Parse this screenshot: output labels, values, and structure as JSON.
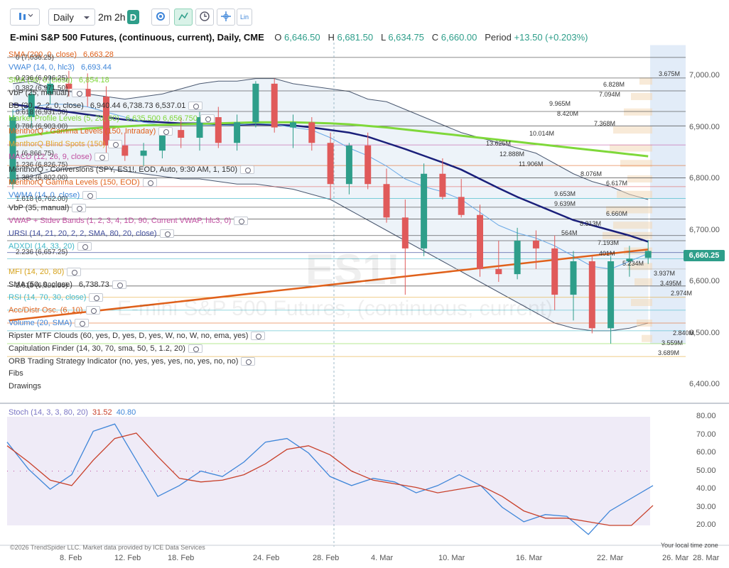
{
  "toolbar": {
    "interval": "Daily",
    "tf_2m": "2m",
    "tf_2h": "2h",
    "tf_d": "D",
    "lin": "Lin",
    "icons": [
      "bars-icon",
      "settings-icon",
      "chart-trend-icon",
      "clock-icon",
      "crosshair-icon",
      "lin-scale-icon"
    ]
  },
  "header": {
    "title": "E-mini S&P 500 Futures, (continuous, current), Daily, CME",
    "o_label": "O",
    "o": "6,646.50",
    "h_label": "H",
    "h": "6,681.50",
    "l_label": "L",
    "l": "6,634.75",
    "c_label": "C",
    "c": "6,660.00",
    "period_label": "Period",
    "period": "+13.50 (+0.203%)"
  },
  "price_tag": "6,660.25",
  "watermark": {
    "symbol": "ES1!",
    "name": "E-mini S&P 500 Futures, (continuous, current)"
  },
  "indicators": [
    {
      "text": "SMA (200, 0, close)",
      "value": "6,663.28",
      "color": "#e0611b"
    },
    {
      "text": "VWAP (14, 0, hlc3)",
      "value": "6,693.44",
      "color": "#3f86d9"
    },
    {
      "text": "SMA (50, 0, close)",
      "value": "6,854.18",
      "color": "#7fd83a"
    },
    {
      "text": "VbP (25, manual)",
      "value": "",
      "color": "#333"
    },
    {
      "text": "BB (20, 2, 2, 0, close)",
      "value": "6,940.44  6,738.73  6,537.01",
      "color": "#333"
    },
    {
      "text": "Market Profile Levels (5, 20, 60)",
      "value": "6,635.500  6,656.750",
      "color": "#7fd83a"
    },
    {
      "text": "MenthorQ - Gamma Levels (150, Intraday)",
      "value": "",
      "color": "#e0611b"
    },
    {
      "text": "MenthorQ Blind Spots (150)",
      "value": "",
      "color": "#e3a52c"
    },
    {
      "text": "MACD (12, 26, 9, close)",
      "value": "",
      "color": "#c04fa0"
    },
    {
      "text": "MenthorQ - Conversions (SPY, ES1!, EOD, Auto, 9:30 AM, 1, 150)",
      "value": "",
      "color": "#333"
    },
    {
      "text": "MenthorQ Gamma Levels (150, EOD)",
      "value": "",
      "color": "#e0611b"
    },
    {
      "text": "VWMA (14, 0, close)",
      "value": "",
      "color": "#3f86d9"
    },
    {
      "text": "VbP (35, manual)",
      "value": "",
      "color": "#333"
    },
    {
      "text": "VWAP + Stdev Bands (1, 2, 3, 4, 1D, 90, Current VWAP, hlc3, 0)",
      "value": "",
      "color": "#c04fa0"
    },
    {
      "text": "URSI (14, 21, 20, 2, 2, SMA, 80, 20, close)",
      "value": "",
      "color": "#3d4a99"
    },
    {
      "text": "ADXDI (14, 33, 20)",
      "value": "",
      "color": "#3fb8c8"
    },
    {
      "text": "MFI (14, 20, 80)",
      "value": "",
      "color": "#d6a21a"
    },
    {
      "text": "SMA (50, 0, close)",
      "value": "6,738.73",
      "color": "#333"
    },
    {
      "text": "RSI (14, 70, 30, close)",
      "value": "",
      "color": "#3fb8c8"
    },
    {
      "text": "Acc/Distr Osc. (6, 10)",
      "value": "",
      "color": "#e0611b"
    },
    {
      "text": "Volume (20, SMA)",
      "value": "",
      "color": "#3f86d9"
    },
    {
      "text": "Ripster MTF Clouds (60, yes, D, yes, D, yes, W, no, W, no, ema, yes)",
      "value": "",
      "color": "#333"
    },
    {
      "text": "Capitulation Finder (14, 30, 70, sma, 50, 5, 1.2, 20)",
      "value": "",
      "color": "#333"
    },
    {
      "text": "ORB Trading Strategy Indicator (no, yes, yes, yes, no, yes, no, no)",
      "value": "",
      "color": "#333"
    },
    {
      "text": "Fibs",
      "value": "",
      "color": "#333"
    },
    {
      "text": "Drawings",
      "value": "",
      "color": "#333"
    }
  ],
  "fib_labels": [
    "0 (7,036.25)",
    "0.236 (6,996.25)",
    "0.382 (6,971.50)",
    "0.618 (6,931.50)",
    "0.786 (6,903.00)",
    "1 (6,866.75)",
    "1.236 (6,826.75)",
    "1.382 (6,802.00)",
    "1.618 (6,762.00)",
    "2.236 (6,657.25)",
    "2.618 (6,592.50)"
  ],
  "price_axis": [
    "7,000.00",
    "6,900.00",
    "6,800.00",
    "6,700.00",
    "6,600.00",
    "6,500.00",
    "6,400.00"
  ],
  "volume_labels": [
    "3.675M",
    "6.828M",
    "7.094M",
    "9.965M",
    "8.420M",
    "7.368M",
    "10.014M",
    "13.625M",
    "12.888M",
    "11.906M",
    "8.076M",
    "6.617M",
    "9.653M",
    "9.639M",
    "6.660M",
    "8.313M",
    "564M",
    "7.193M",
    "401M",
    "5.234M",
    "3.937M",
    "3.495M",
    "2.974M",
    "2.840M",
    "3.559M",
    "3.689M"
  ],
  "stoch": {
    "label": "Stoch (14, 3, 3, 80, 20)",
    "k": "31.52",
    "d": "40.80",
    "axis": [
      "80.00",
      "70.00",
      "60.00",
      "50.00",
      "40.00",
      "30.00",
      "20.00"
    ]
  },
  "x_axis": [
    "8. Feb",
    "12. Feb",
    "18. Feb",
    "24. Feb",
    "28. Feb",
    "4. Mar",
    "10. Mar",
    "16. Mar",
    "22. Mar",
    "26. Mar",
    "28. Mar"
  ],
  "footer": {
    "copyright": "©2026 TrendSpider LLC. Market data provided by ICE Data Services",
    "timezone": "Your local time zone"
  },
  "colors": {
    "up": "#2e9e8a",
    "down": "#e05a5a",
    "sma200": "#e0611b",
    "sma50": "#7fd83a",
    "vwma": "#1a1f7a",
    "stoch_k": "#3f86d9",
    "stoch_d": "#c8402a"
  },
  "chart_data": {
    "type": "candlestick",
    "x": [
      "Feb 5",
      "Feb 6",
      "Feb 9",
      "Feb 10",
      "Feb 11",
      "Feb 12",
      "Feb 13",
      "Feb 16",
      "Feb 17",
      "Feb 18",
      "Feb 19",
      "Feb 20",
      "Feb 23",
      "Feb 24",
      "Feb 25",
      "Feb 26",
      "Feb 27",
      "Mar 2",
      "Mar 3",
      "Mar 4",
      "Mar 5",
      "Mar 6",
      "Mar 9",
      "Mar 10",
      "Mar 11",
      "Mar 12",
      "Mar 13",
      "Mar 16",
      "Mar 17",
      "Mar 18",
      "Mar 19",
      "Mar 20",
      "Mar 23",
      "Mar 24",
      "Mar 25"
    ],
    "candles": [
      [
        6790,
        6935,
        6780,
        6920
      ],
      [
        6920,
        6975,
        6900,
        6965
      ],
      [
        6965,
        7000,
        6945,
        6985
      ],
      [
        6985,
        7010,
        6960,
        6975
      ],
      [
        6975,
        7005,
        6940,
        6960
      ],
      [
        6960,
        6980,
        6850,
        6865
      ],
      [
        6865,
        6890,
        6835,
        6845
      ],
      [
        6845,
        6870,
        6825,
        6855
      ],
      [
        6855,
        6900,
        6840,
        6895
      ],
      [
        6895,
        6920,
        6860,
        6880
      ],
      [
        6880,
        6930,
        6855,
        6920
      ],
      [
        6920,
        6940,
        6860,
        6870
      ],
      [
        6870,
        6925,
        6855,
        6910
      ],
      [
        6910,
        6990,
        6900,
        6985
      ],
      [
        6985,
        6995,
        6890,
        6900
      ],
      [
        6900,
        6925,
        6860,
        6910
      ],
      [
        6910,
        6920,
        6855,
        6870
      ],
      [
        6870,
        6890,
        6760,
        6790
      ],
      [
        6790,
        6870,
        6770,
        6865
      ],
      [
        6865,
        6890,
        6780,
        6790
      ],
      [
        6790,
        6820,
        6715,
        6725
      ],
      [
        6725,
        6760,
        6575,
        6665
      ],
      [
        6665,
        6830,
        6650,
        6810
      ],
      [
        6810,
        6840,
        6760,
        6765
      ],
      [
        6765,
        6800,
        6725,
        6730
      ],
      [
        6730,
        6750,
        6610,
        6625
      ],
      [
        6625,
        6680,
        6600,
        6615
      ],
      [
        6615,
        6705,
        6605,
        6680
      ],
      [
        6680,
        6700,
        6625,
        6665
      ],
      [
        6665,
        6690,
        6545,
        6575
      ],
      [
        6575,
        6660,
        6525,
        6640
      ],
      [
        6640,
        6650,
        6500,
        6510
      ],
      [
        6510,
        6650,
        6480,
        6640
      ],
      [
        6640,
        6670,
        6610,
        6645
      ],
      [
        6646.5,
        6681.5,
        6634.75,
        6660
      ]
    ],
    "ylim": [
      6380,
      7060
    ],
    "sma200": [
      [
        0,
        6525
      ],
      [
        34,
        6663
      ]
    ],
    "sma50_label": "SMA (50, 0, close)",
    "stoch_k_values": [
      66,
      51,
      40,
      48,
      72,
      76,
      56,
      36,
      42,
      50,
      47,
      55,
      66,
      68,
      60,
      47,
      42,
      46,
      44,
      38,
      42,
      48,
      42,
      30,
      22,
      26,
      25,
      15,
      28,
      35,
      42
    ],
    "stoch_d_values": [
      64,
      55,
      45,
      42,
      56,
      68,
      71,
      58,
      46,
      44,
      45,
      48,
      54,
      62,
      64,
      59,
      50,
      45,
      43,
      41,
      38,
      40,
      42,
      36,
      28,
      24,
      24,
      22,
      20,
      20,
      31
    ],
    "stoch_ylim": [
      15,
      85
    ]
  }
}
